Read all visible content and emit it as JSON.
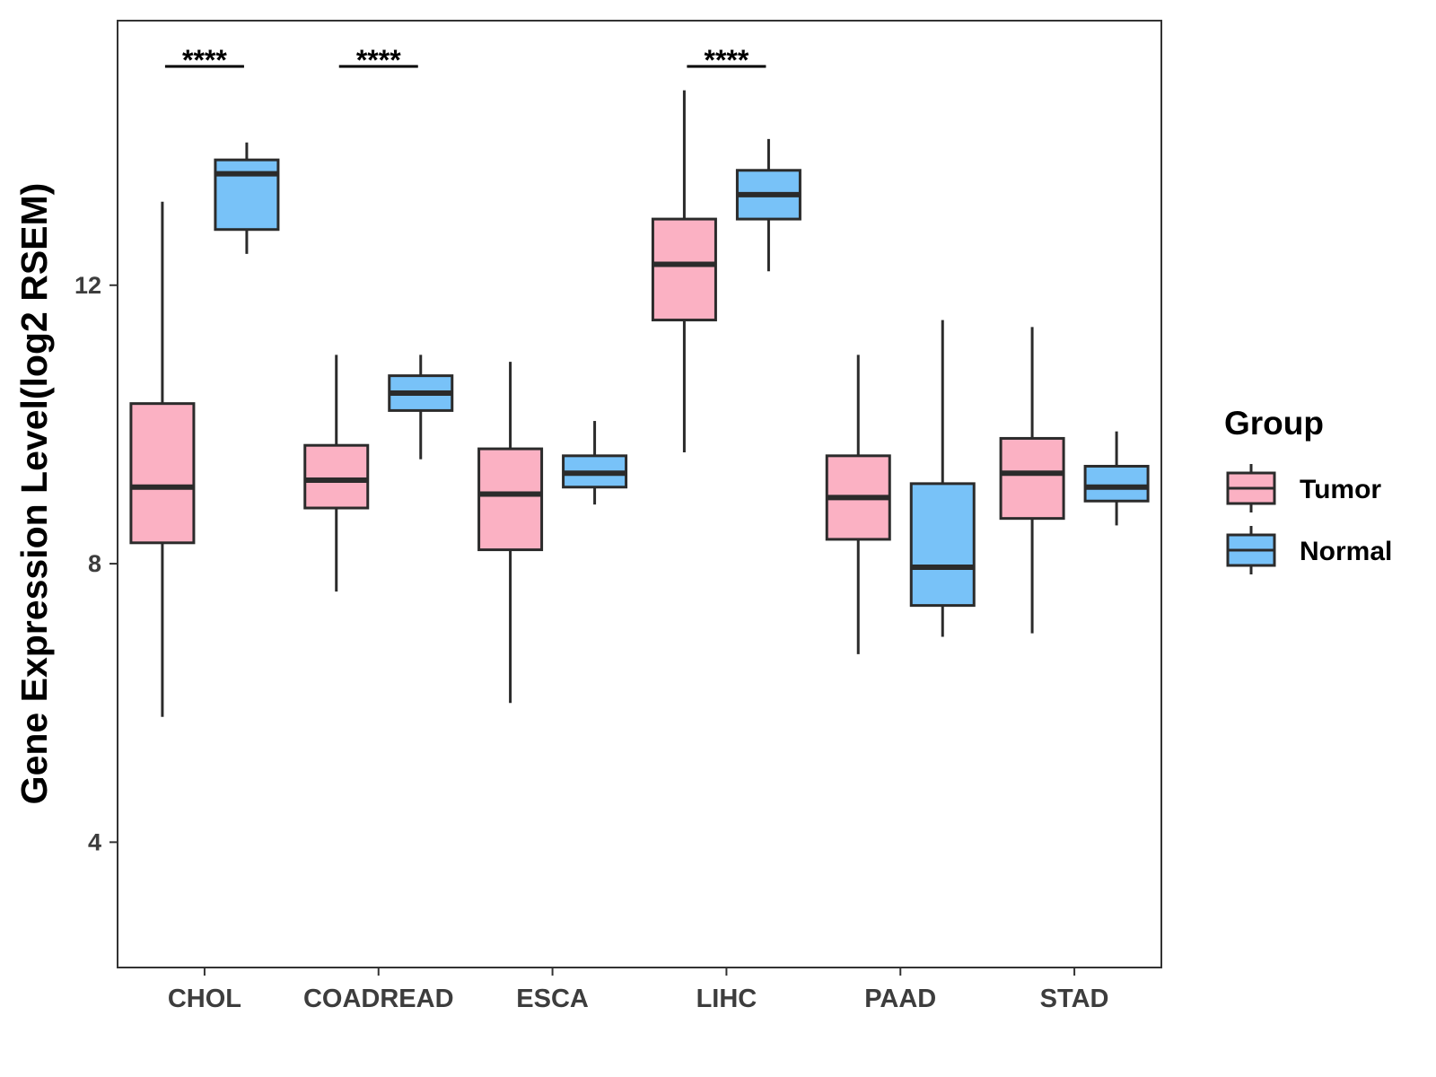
{
  "chart_data": {
    "type": "boxplot",
    "title": "",
    "xlabel": "",
    "ylabel": "Gene Expression Level(log2 RSEM)",
    "ylim": [
      2.2,
      15.8
    ],
    "yticks": [
      4,
      8,
      12
    ],
    "grid": false,
    "legend": {
      "title": "Group",
      "placement": "right",
      "entries": [
        {
          "name": "Tumor",
          "color": "#fbb1c3"
        },
        {
          "name": "Normal",
          "color": "#78c2f8"
        }
      ]
    },
    "categories": [
      "CHOL",
      "COADREAD",
      "ESCA",
      "LIHC",
      "PAAD",
      "STAD"
    ],
    "series": [
      {
        "name": "Tumor",
        "color": "#fbb1c3",
        "boxes": [
          {
            "category": "CHOL",
            "whisker_low": 5.8,
            "q1": 8.3,
            "median": 9.1,
            "q3": 10.3,
            "whisker_high": 13.2
          },
          {
            "category": "COADREAD",
            "whisker_low": 7.6,
            "q1": 8.8,
            "median": 9.2,
            "q3": 9.7,
            "whisker_high": 11.0
          },
          {
            "category": "ESCA",
            "whisker_low": 6.0,
            "q1": 8.2,
            "median": 9.0,
            "q3": 9.65,
            "whisker_high": 10.9
          },
          {
            "category": "LIHC",
            "whisker_low": 9.6,
            "q1": 11.5,
            "median": 12.3,
            "q3": 12.95,
            "whisker_high": 14.8
          },
          {
            "category": "PAAD",
            "whisker_low": 6.7,
            "q1": 8.35,
            "median": 8.95,
            "q3": 9.55,
            "whisker_high": 11.0
          },
          {
            "category": "STAD",
            "whisker_low": 7.0,
            "q1": 8.65,
            "median": 9.3,
            "q3": 9.8,
            "whisker_high": 11.4
          }
        ]
      },
      {
        "name": "Normal",
        "color": "#78c2f8",
        "boxes": [
          {
            "category": "CHOL",
            "whisker_low": 12.45,
            "q1": 12.8,
            "median": 13.6,
            "q3": 13.8,
            "whisker_high": 14.05
          },
          {
            "category": "COADREAD",
            "whisker_low": 9.5,
            "q1": 10.2,
            "median": 10.45,
            "q3": 10.7,
            "whisker_high": 11.0
          },
          {
            "category": "ESCA",
            "whisker_low": 8.85,
            "q1": 9.1,
            "median": 9.3,
            "q3": 9.55,
            "whisker_high": 10.05
          },
          {
            "category": "LIHC",
            "whisker_low": 12.2,
            "q1": 12.95,
            "median": 13.3,
            "q3": 13.65,
            "whisker_high": 14.1
          },
          {
            "category": "PAAD",
            "whisker_low": 6.95,
            "q1": 7.4,
            "median": 7.95,
            "q3": 9.15,
            "whisker_high": 11.5
          },
          {
            "category": "STAD",
            "whisker_low": 8.55,
            "q1": 8.9,
            "median": 9.1,
            "q3": 9.4,
            "whisker_high": 9.9
          }
        ]
      }
    ],
    "annotations": [
      {
        "category": "CHOL",
        "label": "****"
      },
      {
        "category": "COADREAD",
        "label": "****"
      },
      {
        "category": "LIHC",
        "label": "****"
      }
    ]
  }
}
